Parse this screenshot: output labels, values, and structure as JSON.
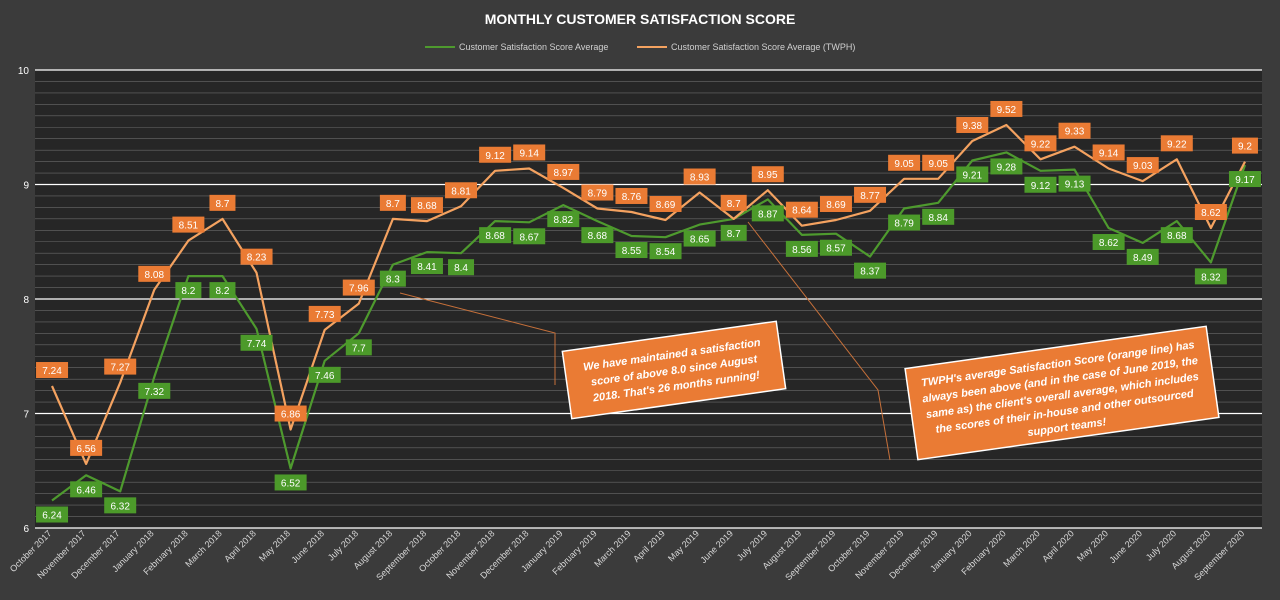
{
  "colors": {
    "background": "#3b3b3b",
    "plot_area": "#262626",
    "series_green": "#4e9a2e",
    "series_orange": "#f4a260",
    "label_green": "#4c9a2a",
    "label_orange": "#ea7b34",
    "gridline": "#ffffff"
  },
  "chart_data": {
    "type": "line",
    "title": "MONTHLY CUSTOMER SATISFACTION SCORE",
    "legend_position": "top",
    "grid": true,
    "ylim": [
      6,
      10
    ],
    "yticks": [
      6,
      7,
      8,
      9,
      10
    ],
    "categories": [
      "October 2017",
      "November 2017",
      "December 2017",
      "January 2018",
      "February 2018",
      "March 2018",
      "April 2018",
      "May 2018",
      "June 2018",
      "July 2018",
      "August 2018",
      "September 2018",
      "October 2018",
      "November 2018",
      "December 2018",
      "January 2019",
      "February 2019",
      "March 2019",
      "April 2019",
      "May 2019",
      "June 2019",
      "July 2019",
      "August 2019",
      "September 2019",
      "October 2019",
      "November 2019",
      "December 2019",
      "January 2020",
      "February 2020",
      "March 2020",
      "April 2020",
      "May 2020",
      "June 2020",
      "July 2020",
      "August 2020",
      "September 2020"
    ],
    "series": [
      {
        "name": "Customer Satisfaction Score Average",
        "color": "#4e9a2e",
        "values": [
          6.24,
          6.46,
          6.32,
          7.32,
          8.2,
          8.2,
          7.74,
          6.52,
          7.46,
          7.7,
          8.3,
          8.41,
          8.4,
          8.68,
          8.67,
          8.82,
          8.68,
          8.55,
          8.54,
          8.65,
          8.7,
          8.87,
          8.56,
          8.57,
          8.37,
          8.79,
          8.84,
          9.21,
          9.28,
          9.12,
          9.13,
          8.62,
          8.49,
          8.68,
          8.32,
          9.17
        ]
      },
      {
        "name": "Customer Satisfaction Score Average (TWPH)",
        "color": "#f4a260",
        "values": [
          7.24,
          6.56,
          7.27,
          8.08,
          8.51,
          8.7,
          8.23,
          6.86,
          7.73,
          7.96,
          8.7,
          8.68,
          8.81,
          9.12,
          9.14,
          8.97,
          8.79,
          8.76,
          8.69,
          8.93,
          8.7,
          8.95,
          8.64,
          8.69,
          8.77,
          9.05,
          9.05,
          9.38,
          9.52,
          9.22,
          9.33,
          9.14,
          9.03,
          9.22,
          8.62,
          9.2
        ]
      }
    ],
    "annotations": [
      {
        "lines": [
          "We have maintained a satisfaction",
          "score of above 8.0 since August",
          "2018. That's 26 months running!"
        ]
      },
      {
        "lines": [
          "TWPH's average Satisfaction Score (orange line) has",
          "always been above (and in the case of June 2019, the",
          "same as) the client's overall average, which includes",
          "the scores of their in-house and other outsourced",
          "support teams!"
        ]
      }
    ]
  }
}
